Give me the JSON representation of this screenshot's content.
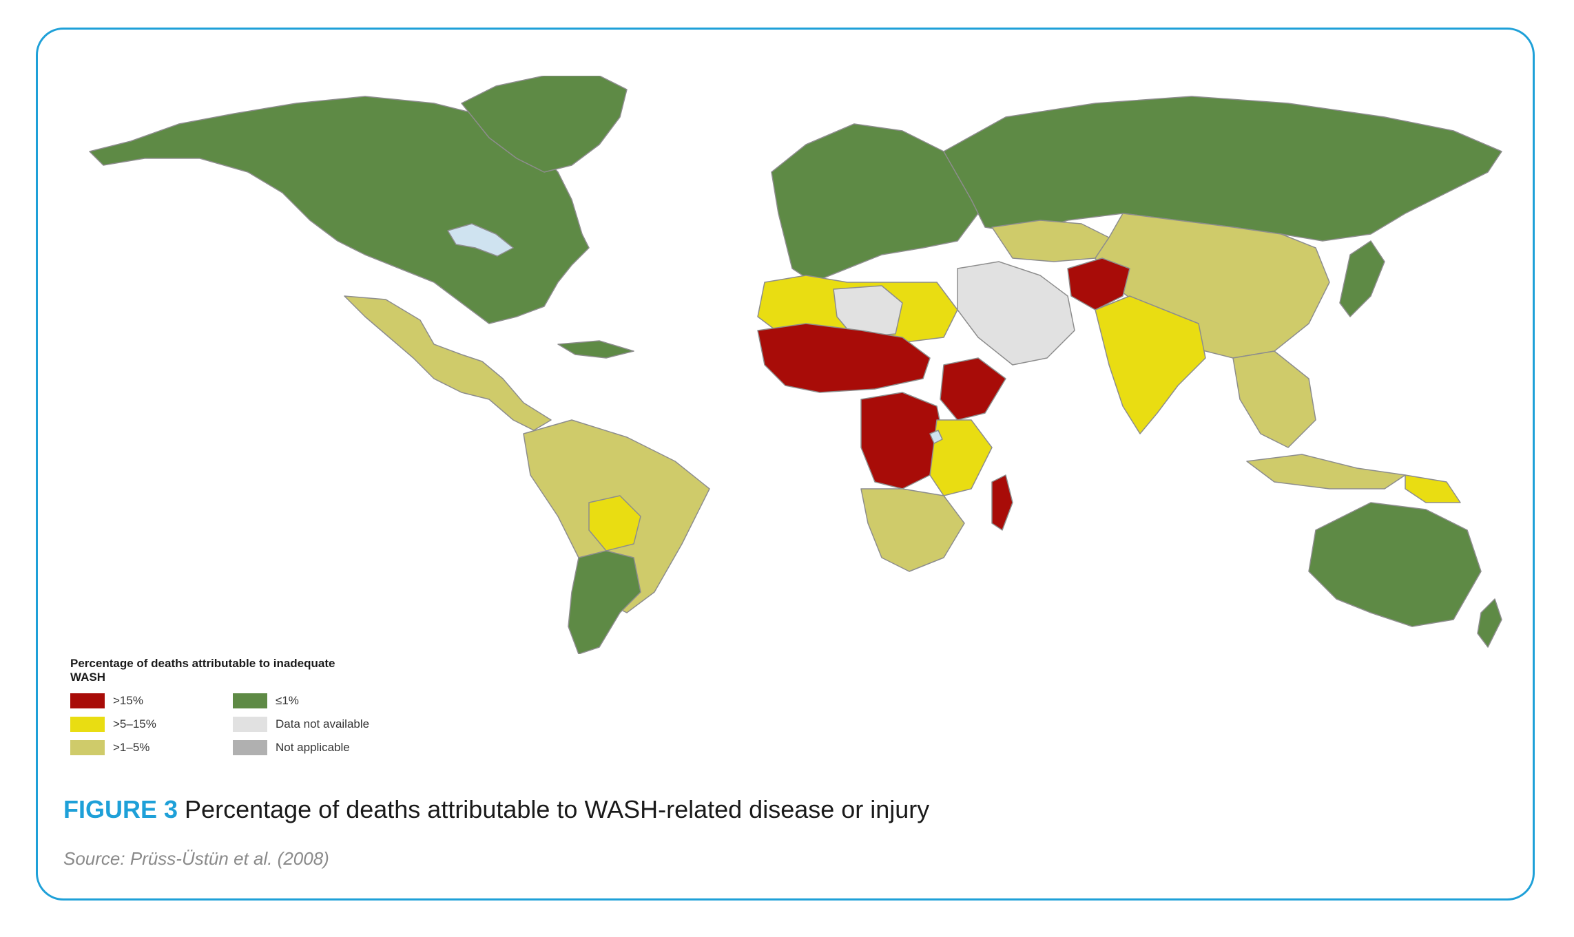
{
  "legend": {
    "title": "Percentage of deaths attributable to inadequate WASH",
    "items": [
      {
        "label": ">15%",
        "color": "#a80c08"
      },
      {
        "label": ">5–15%",
        "color": "#e9dd12"
      },
      {
        "label": ">1–5%",
        "color": "#cfcb6a"
      },
      {
        "label": "≤1%",
        "color": "#5e8a45"
      },
      {
        "label": "Data not available",
        "color": "#e1e1e1"
      },
      {
        "label": "Not applicable",
        "color": "#b0b0b0"
      }
    ]
  },
  "caption": {
    "figure_label": "FIGURE 3",
    "text": "Percentage of deaths attributable to WASH-related disease or injury"
  },
  "source": "Source: Prüss-Üstün et al. (2008)",
  "colors": {
    "frame_border": "#1ea0d8",
    "water": "#cfe3f0",
    "border_lines": "#8a8a8a"
  }
}
